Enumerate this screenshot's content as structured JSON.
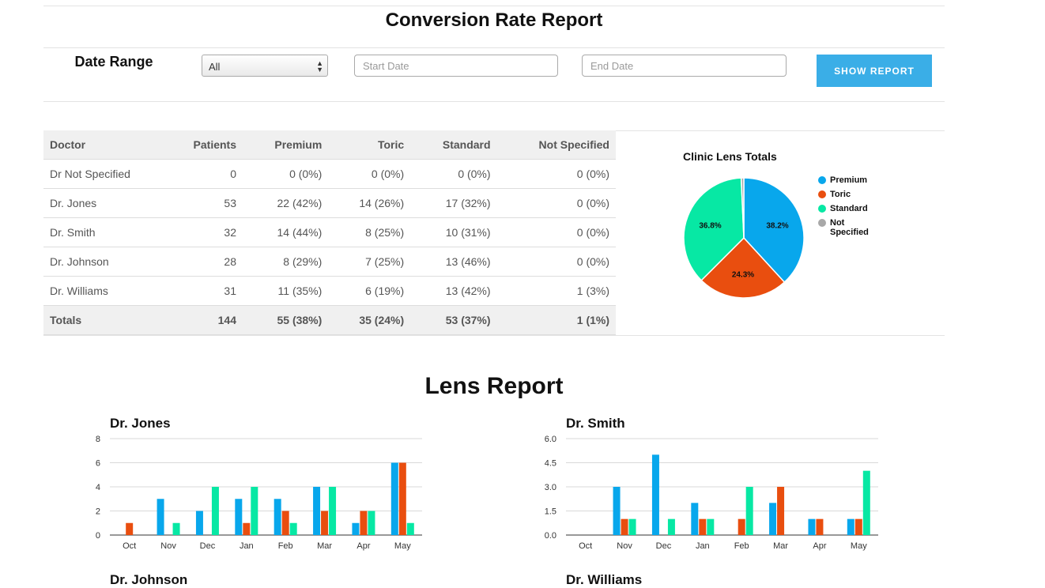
{
  "report": {
    "title": "Conversion Rate Report"
  },
  "filters": {
    "date_range_label": "Date Range",
    "select_value": "All",
    "start_placeholder": "Start Date",
    "end_placeholder": "End Date",
    "show_button": "SHOW REPORT"
  },
  "table": {
    "headers": [
      "Doctor",
      "Patients",
      "Premium",
      "Toric",
      "Standard",
      "Not Specified"
    ],
    "rows": [
      [
        "Dr Not Specified",
        "0",
        "0 (0%)",
        "0 (0%)",
        "0 (0%)",
        "0 (0%)"
      ],
      [
        "Dr. Jones",
        "53",
        "22 (42%)",
        "14 (26%)",
        "17 (32%)",
        "0 (0%)"
      ],
      [
        "Dr. Smith",
        "32",
        "14 (44%)",
        "8 (25%)",
        "10 (31%)",
        "0 (0%)"
      ],
      [
        "Dr. Johnson",
        "28",
        "8 (29%)",
        "7 (25%)",
        "13 (46%)",
        "0 (0%)"
      ],
      [
        "Dr. Williams",
        "31",
        "11 (35%)",
        "6 (19%)",
        "13 (42%)",
        "1 (3%)"
      ]
    ],
    "totals": [
      "Totals",
      "144",
      "55 (38%)",
      "35 (24%)",
      "53 (37%)",
      "1 (1%)"
    ]
  },
  "colors": {
    "premium": "#08a7ec",
    "toric": "#e94e0f",
    "standard": "#07e8a4",
    "not_specified": "#a8a8a8"
  },
  "lens_report_title": "Lens Report",
  "chart_data": [
    {
      "type": "pie",
      "title": "Clinic Lens Totals",
      "labels": [
        "Premium",
        "Toric",
        "Standard",
        "Not Specified"
      ],
      "values": [
        38.2,
        24.3,
        36.8,
        0.7
      ],
      "data_labels": [
        "38.2%",
        "24.3%",
        "36.8%",
        ""
      ],
      "legend": "right"
    },
    {
      "type": "bar",
      "title": "Dr. Jones",
      "categories": [
        "Oct",
        "Nov",
        "Dec",
        "Jan",
        "Feb",
        "Mar",
        "Apr",
        "May"
      ],
      "series": [
        {
          "name": "Premium",
          "values": [
            0,
            3,
            2,
            3,
            3,
            4,
            1,
            6
          ]
        },
        {
          "name": "Toric",
          "values": [
            1,
            0,
            0,
            1,
            2,
            2,
            2,
            6
          ]
        },
        {
          "name": "Standard",
          "values": [
            0,
            1,
            4,
            4,
            1,
            4,
            2,
            1
          ]
        }
      ],
      "ylim": [
        0,
        8
      ],
      "yticks": [
        "0",
        "2",
        "4",
        "6",
        "8"
      ]
    },
    {
      "type": "bar",
      "title": "Dr. Smith",
      "categories": [
        "Oct",
        "Nov",
        "Dec",
        "Jan",
        "Feb",
        "Mar",
        "Apr",
        "May"
      ],
      "series": [
        {
          "name": "Premium",
          "values": [
            0,
            3,
            5,
            2,
            0,
            2,
            1,
            1
          ]
        },
        {
          "name": "Toric",
          "values": [
            0,
            1,
            0,
            1,
            1,
            3,
            1,
            1
          ]
        },
        {
          "name": "Standard",
          "values": [
            0,
            1,
            1,
            1,
            3,
            0,
            0,
            4
          ]
        }
      ],
      "ylim": [
        0,
        6
      ],
      "yticks": [
        "0.0",
        "1.5",
        "3.0",
        "4.5",
        "6.0"
      ]
    }
  ],
  "next_charts": {
    "left": "Dr. Johnson",
    "right": "Dr. Williams"
  }
}
